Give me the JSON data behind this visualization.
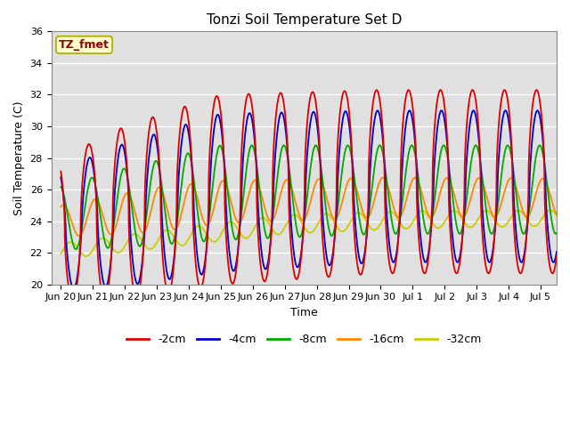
{
  "title": "Tonzi Soil Temperature Set D",
  "xlabel": "Time",
  "ylabel": "Soil Temperature (C)",
  "ylim": [
    20,
    36
  ],
  "background_color": "#e0e0e0",
  "grid_color": "white",
  "label_box_text": "TZ_fmet",
  "label_box_facecolor": "#ffffcc",
  "label_box_edgecolor": "#aaaa00",
  "label_box_textcolor": "#990000",
  "tick_labels": [
    "Jun 20",
    "Jun 21",
    "Jun 22",
    "Jun 23",
    "Jun 24",
    "Jun 25",
    "Jun 26",
    "Jun 27",
    "Jun 28",
    "Jun 29",
    "Jun 30",
    "Jul 1",
    "Jul 2",
    "Jul 3",
    "Jul 4",
    "Jul 5"
  ],
  "colors": {
    "-2cm": "#dd0000",
    "-4cm": "#0000cc",
    "-8cm": "#00aa00",
    "-16cm": "#ff8800",
    "-32cm": "#cccc00"
  },
  "lw": 1.3
}
